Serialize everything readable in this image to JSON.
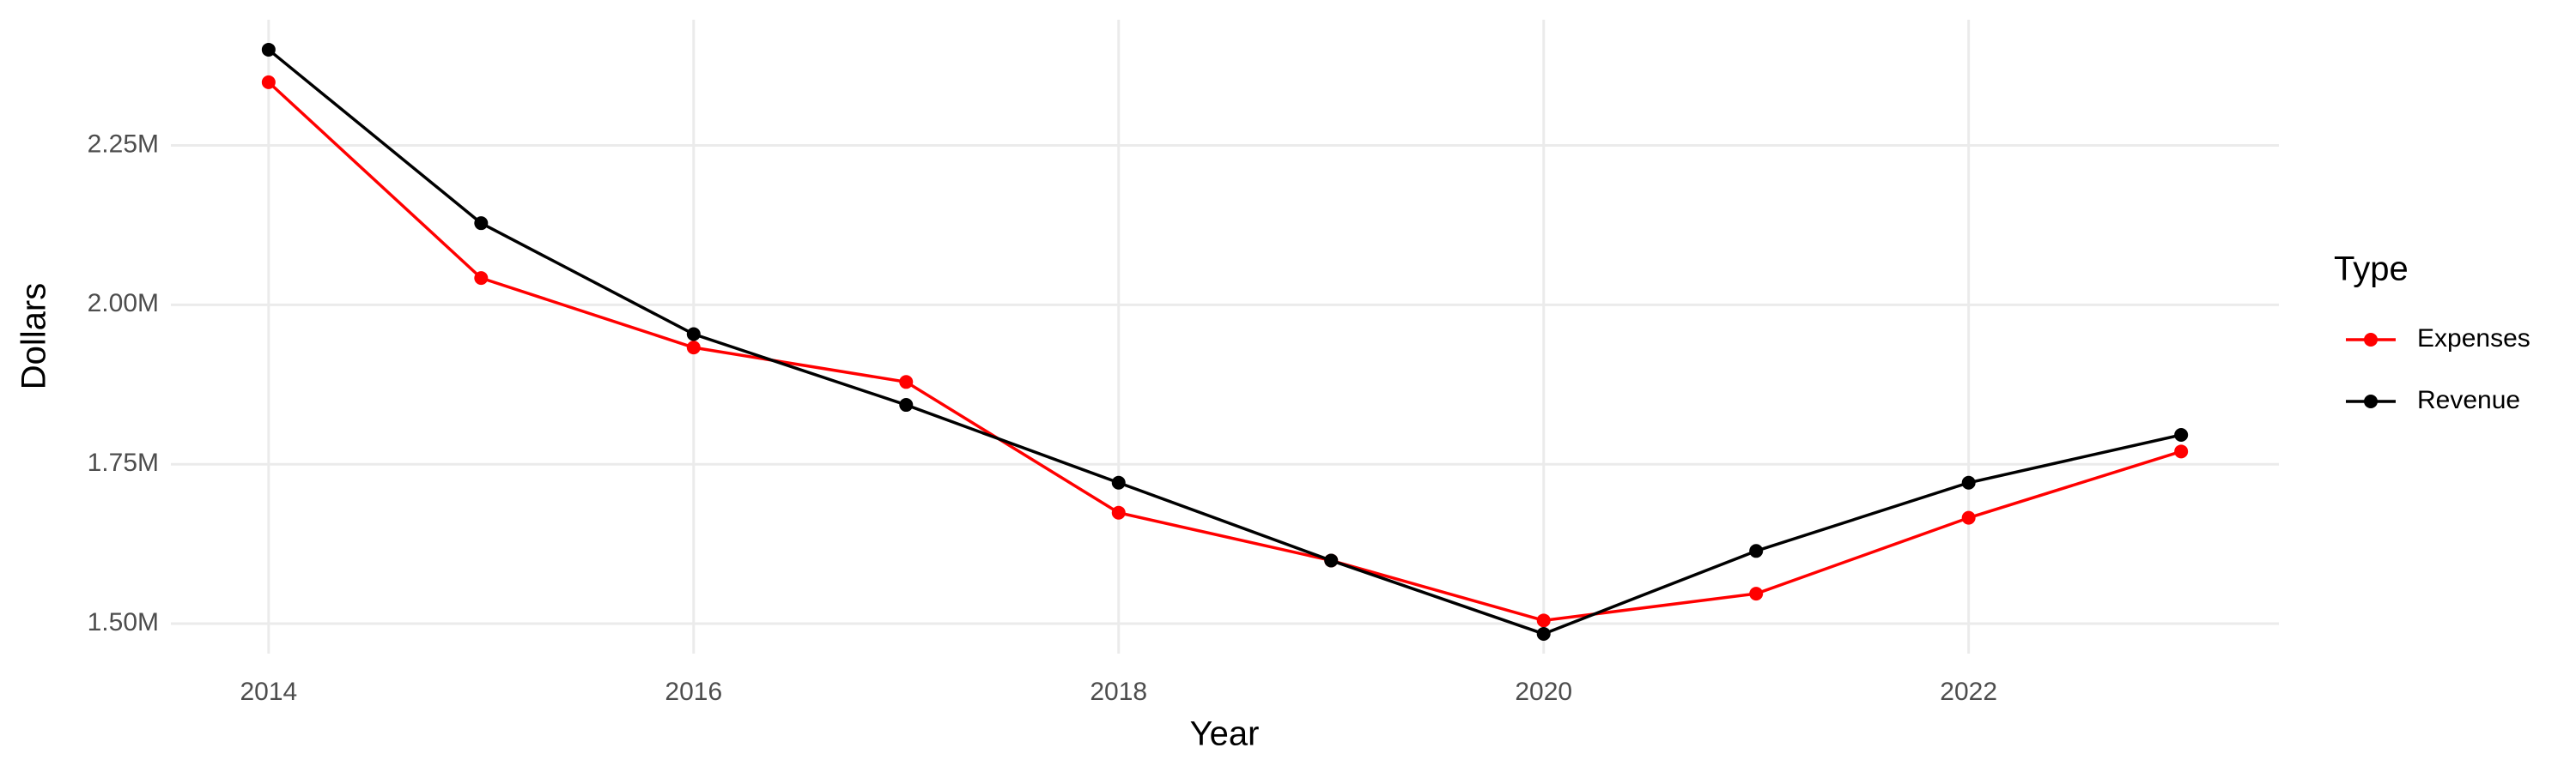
{
  "chart_data": {
    "type": "line",
    "x_label": "Year",
    "y_label": "Dollars",
    "legend_title": "Type",
    "legend_position": "right",
    "x": [
      2014,
      2015,
      2016,
      2017,
      2018,
      2019,
      2020,
      2021,
      2022,
      2023
    ],
    "series": [
      {
        "name": "Expenses",
        "color": "#ff0000",
        "values": [
          2349000,
          2042000,
          1933000,
          1879000,
          1674000,
          1599000,
          1505000,
          1547000,
          1666000,
          1770000
        ]
      },
      {
        "name": "Revenue",
        "color": "#000000",
        "values": [
          2400000,
          2128000,
          1954000,
          1843000,
          1721000,
          1599000,
          1484000,
          1614000,
          1721000,
          1796000
        ]
      }
    ],
    "xlim": [
      2013.54,
      2023.46
    ],
    "xticks": [
      2014,
      2016,
      2018,
      2020,
      2022
    ],
    "ylim": [
      1453000,
      2447000
    ],
    "yticks": [
      {
        "value": 1500000,
        "label": "1.50M"
      },
      {
        "value": 1750000,
        "label": "1.75M"
      },
      {
        "value": 2000000,
        "label": "2.00M"
      },
      {
        "value": 2250000,
        "label": "2.25M"
      }
    ],
    "grid": true
  }
}
